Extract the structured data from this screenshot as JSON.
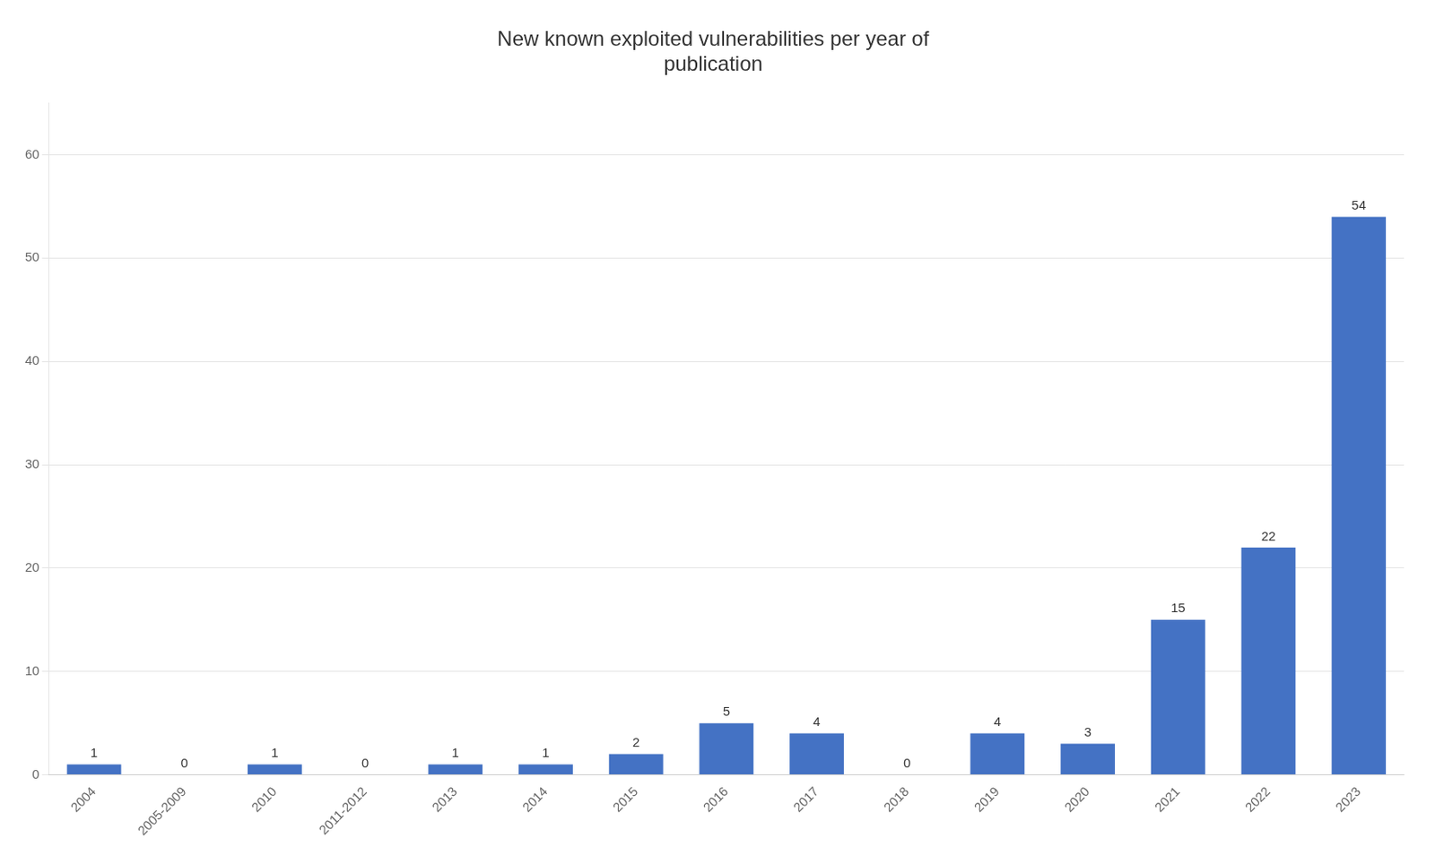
{
  "chart_data": {
    "type": "bar",
    "title": "New known exploited vulnerabilities per year of\npublication",
    "categories": [
      "2004",
      "2005-2009",
      "2010",
      "2011-2012",
      "2013",
      "2014",
      "2015",
      "2016",
      "2017",
      "2018",
      "2019",
      "2020",
      "2021",
      "2022",
      "2023"
    ],
    "values": [
      1,
      0,
      1,
      0,
      1,
      1,
      2,
      5,
      4,
      0,
      4,
      3,
      15,
      22,
      54
    ],
    "color": "#4472C4",
    "ylim": [
      0,
      65
    ],
    "yticks": [
      0,
      10,
      20,
      30,
      40,
      50,
      60
    ],
    "grid": true,
    "data_labels": true
  }
}
